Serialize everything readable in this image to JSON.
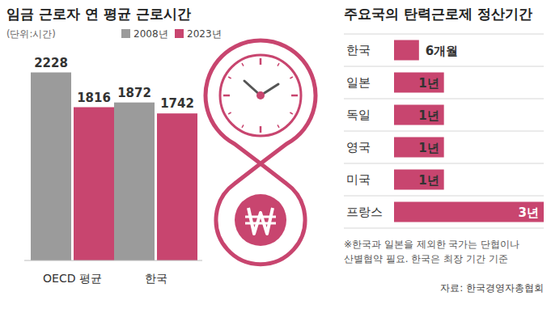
{
  "chart_data": [
    {
      "type": "bar",
      "title": "임금 근로자 연 평균 근로시간",
      "subtitle": "(단위:시간)",
      "categories": [
        "OECD 평균",
        "한국"
      ],
      "series": [
        {
          "name": "2008년",
          "color": "#9b9b9b",
          "values": [
            2228,
            1872
          ]
        },
        {
          "name": "2023년",
          "color": "#c8456f",
          "values": [
            1816,
            1742
          ]
        }
      ],
      "ylim": [
        0,
        2300
      ],
      "tick_labels": "x",
      "data_labels": true,
      "legend": "top"
    },
    {
      "type": "bar",
      "orientation": "horizontal",
      "title": "주요국의 탄력근로제 정산기간",
      "categories": [
        "한국",
        "일본",
        "독일",
        "영국",
        "미국",
        "프랑스"
      ],
      "values": [
        0.5,
        1,
        1,
        1,
        1,
        3
      ],
      "value_labels": [
        "6개월",
        "1년",
        "1년",
        "1년",
        "1년",
        "3년"
      ],
      "color": "#c8456f",
      "xlim": [
        0,
        3
      ],
      "tick_labels": "y",
      "data_labels": true,
      "annotations": [
        "※한국과 일본을 제외한 국가는 단협이나",
        "산별협약 필요. 한국은 최장 기간 기준"
      ]
    }
  ],
  "source": "자료: 한국경영자총협회"
}
